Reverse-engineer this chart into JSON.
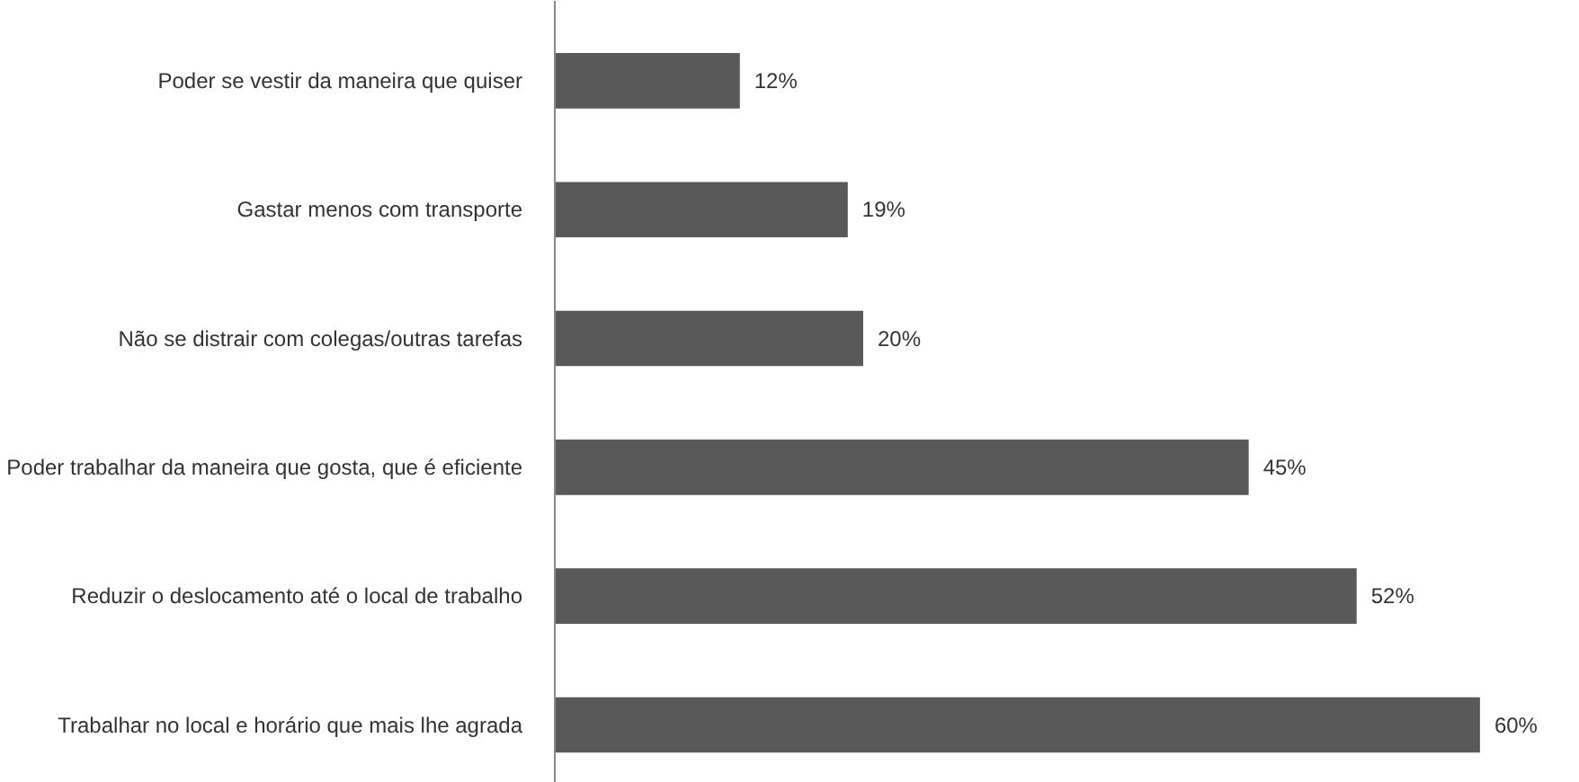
{
  "chart_data": {
    "type": "bar",
    "orientation": "horizontal",
    "categories": [
      "Poder se vestir da maneira que quiser",
      "Gastar menos com transporte",
      "Não se distrair com colegas/outras tarefas",
      "Poder trabalhar da maneira que gosta, que é eficiente",
      "Reduzir o deslocamento até o local de trabalho",
      "Trabalhar no local e horário que mais lhe agrada"
    ],
    "values": [
      12,
      19,
      20,
      45,
      52,
      60
    ],
    "value_labels": [
      "12%",
      "19%",
      "20%",
      "45%",
      "52%",
      "60%"
    ],
    "color": "#595959"
  }
}
